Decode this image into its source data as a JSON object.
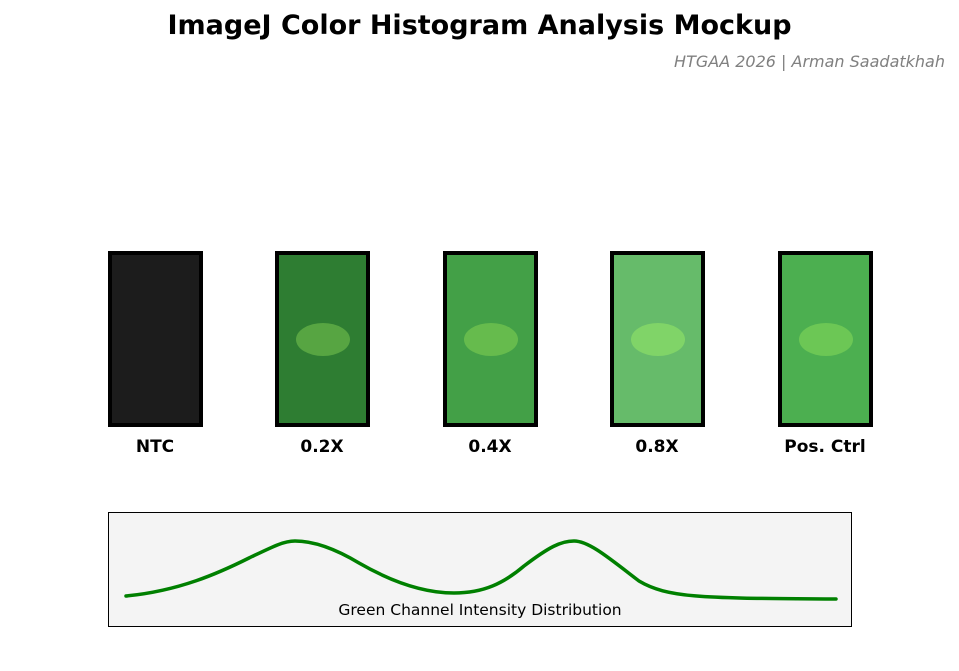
{
  "header": {
    "title": "ImageJ Color Histogram Analysis Mockup",
    "subtitle": "HTGAA 2026 | Arman Saadatkhah"
  },
  "tubes": [
    {
      "label": "NTC",
      "fill": "#1c1c1c",
      "spot": null
    },
    {
      "label": "0.2X",
      "fill": "#2e7d32",
      "spot": "#57a542"
    },
    {
      "label": "0.4X",
      "fill": "#43a047",
      "spot": "#66bb4d"
    },
    {
      "label": "0.8X",
      "fill": "#66bb6a",
      "spot": "#80d468"
    },
    {
      "label": "Pos. Ctrl",
      "fill": "#4caf50",
      "spot": "#6cc755"
    }
  ],
  "histogram": {
    "label": "Green Channel Intensity Distribution",
    "line_color": "#008000"
  }
}
